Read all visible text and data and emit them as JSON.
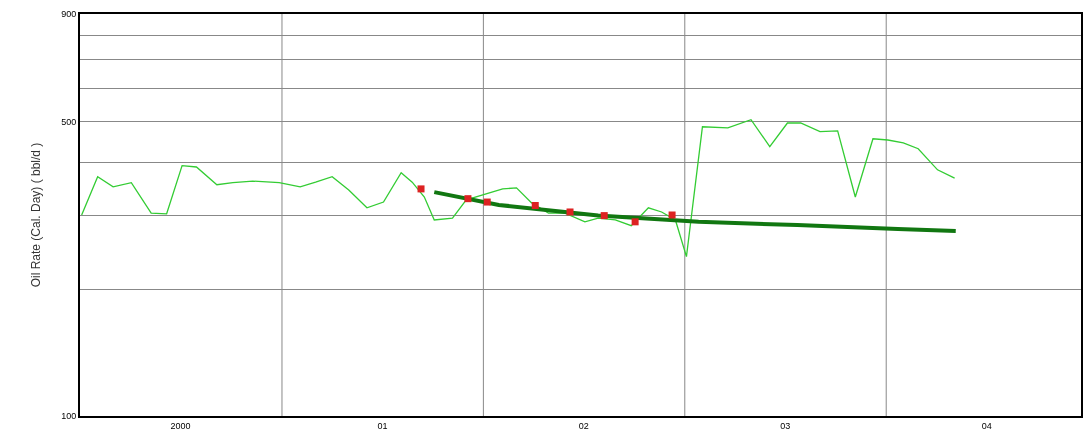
{
  "chart_data": {
    "type": "line",
    "ylabel": "Oil Rate (Cal. Day) ( bbl/d )",
    "log": true,
    "grid": true,
    "legend": false,
    "xlim": [
      "2000-01-01",
      "2004-12-19"
    ],
    "xticks": [
      {
        "value": "2000-07-01",
        "label": "2000"
      },
      {
        "value": "2001-01-01",
        "label": null
      },
      {
        "value": "2001-07-02",
        "label": "01"
      },
      {
        "value": "2002-01-01",
        "label": null
      },
      {
        "value": "2002-07-02",
        "label": "02"
      },
      {
        "value": "2003-01-01",
        "label": null
      },
      {
        "value": "2003-07-02",
        "label": "03"
      },
      {
        "value": "2004-01-01",
        "label": null
      },
      {
        "value": "2004-07-01",
        "label": "04"
      }
    ],
    "ylim": [
      100,
      900
    ],
    "yticks": [
      100,
      {
        "value": 200,
        "label": null
      },
      {
        "value": 300,
        "label": null
      },
      {
        "value": 400,
        "label": null
      },
      500,
      {
        "value": 600,
        "label": null
      },
      {
        "value": 700,
        "label": null
      },
      {
        "value": 800,
        "label": null
      },
      900
    ],
    "series": [
      {
        "color": "#33cc33",
        "marker": "none",
        "line_style": "solid",
        "x": [
          "2000-01-04",
          "2000-02-02",
          "2000-03-01",
          "2000-04-03",
          "2000-05-09",
          "2000-06-06",
          "2000-07-04",
          "2000-07-30",
          "2000-09-05",
          "2000-10-04",
          "2000-11-09",
          "2000-12-27",
          "2001-02-03",
          "2001-03-03",
          "2001-04-02",
          "2001-05-02",
          "2001-06-04",
          "2001-07-04",
          "2001-08-05",
          "2001-08-25",
          "2001-09-16",
          "2001-10-04",
          "2001-11-06",
          "2001-12-01",
          "2002-02-05",
          "2002-03-02",
          "2002-03-29",
          "2002-04-29",
          "2002-05-29",
          "2002-07-04",
          "2002-07-28",
          "2002-08-28",
          "2002-09-26",
          "2002-10-27",
          "2002-11-20",
          "2002-12-15",
          "2003-01-04",
          "2003-02-02",
          "2003-03-20",
          "2003-05-01",
          "2003-06-04",
          "2003-07-06",
          "2003-07-30",
          "2003-09-03",
          "2003-10-05",
          "2003-11-06",
          "2003-12-08",
          "2004-01-04",
          "2004-02-01",
          "2004-02-28",
          "2004-04-03",
          "2004-05-04"
        ],
        "values": [
          300,
          370,
          350,
          358,
          303,
          302,
          393,
          390,
          354,
          358,
          361,
          358,
          350,
          359,
          370,
          344,
          312,
          322,
          378,
          359,
          331,
          292,
          295,
          326,
          346,
          348,
          321,
          303,
          303,
          289,
          295,
          292,
          283,
          312,
          305,
          292,
          239,
          486,
          483,
          505,
          436,
          496,
          496,
          473,
          475,
          331,
          455,
          452,
          445,
          431,
          384,
          367
        ]
      },
      {
        "color": "#117711",
        "marker": "none",
        "line_style": "solid",
        "x": [
          "2001-10-04",
          "2002-01-29",
          "2002-07-28",
          "2003-01-26",
          "2003-07-24",
          "2004-01-22",
          "2004-05-06"
        ],
        "values": [
          340,
          317,
          299,
          289,
          284,
          278,
          275
        ]
      },
      {
        "type": "scatter",
        "color": "#dd2222",
        "marker": "square",
        "x": [
          "2001-09-10",
          "2001-12-04",
          "2002-01-08",
          "2002-04-05",
          "2002-06-07",
          "2002-08-08",
          "2002-10-03",
          "2002-12-09"
        ],
        "values": [
          346,
          328,
          322,
          316,
          305,
          299,
          289,
          300
        ]
      }
    ]
  }
}
